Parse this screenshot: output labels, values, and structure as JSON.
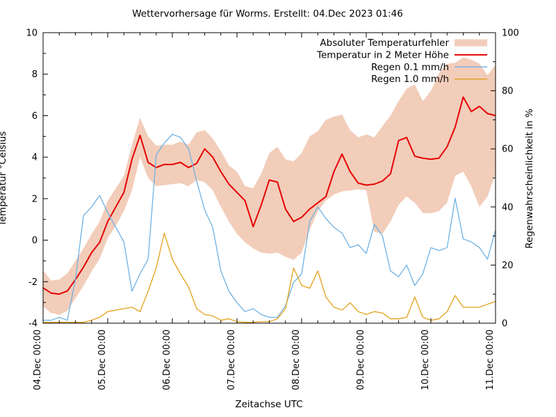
{
  "title": "Wettervorhersage für Worms. Erstellt: 04.Dec 2023 01:46",
  "xlabel": "Zeitachse UTC",
  "ylabel_left": "Temperatur °Celsius",
  "ylabel_right": "Regenwahrscheinlichkeit in %",
  "colors": {
    "background": "#ffffff",
    "axis": "#000000",
    "error_band": "#f2cdba",
    "temperature": "#e60000",
    "rain01": "#6eb1e3",
    "rain10": "#e3a018"
  },
  "legend": {
    "position": "top-right-inside",
    "entries": [
      {
        "label": "Absoluter Temperaturfehler",
        "swatch": "band",
        "color": "#f2cdba"
      },
      {
        "label": "Temperatur in 2 Meter Höhe",
        "swatch": "line",
        "color": "#e60000"
      },
      {
        "label": "Regen 0.1 mm/h",
        "swatch": "line",
        "color": "#6eb1e3"
      },
      {
        "label": "Regen 1.0 mm/h",
        "swatch": "line",
        "color": "#e3a018"
      }
    ]
  },
  "axes": {
    "x": {
      "tick_labels": [
        "04.Dec 00:00",
        "05.Dec 00:00",
        "06.Dec 00:00",
        "07.Dec 00:00",
        "08.Dec 00:00",
        "09.Dec 00:00",
        "10.Dec 00:00",
        "11.Dec 00:00"
      ],
      "major_tick_hours": [
        0,
        24,
        48,
        72,
        96,
        120,
        144,
        168
      ],
      "minor_tick_step_hours": 6,
      "range_hours": [
        0,
        168
      ]
    },
    "y_left": {
      "range": [
        -4,
        10
      ],
      "major_ticks": [
        -4,
        -2,
        0,
        2,
        4,
        6,
        8,
        10
      ],
      "minor_step": 1
    },
    "y_right": {
      "range": [
        0,
        100
      ],
      "major_ticks": [
        0,
        20,
        40,
        60,
        80,
        100
      ],
      "minor_step": 10
    }
  },
  "chart_data": {
    "type": "line",
    "title": "Wettervorhersage für Worms. Erstellt: 04.Dec 2023 01:46",
    "xlabel": "Zeitachse UTC",
    "ylabel": "Temperatur °Celsius",
    "y2label": "Regenwahrscheinlichkeit in %",
    "ylim_left": [
      -4,
      10
    ],
    "ylim_right": [
      0,
      100
    ],
    "grid": false,
    "legend_position": "top-right",
    "x_hours": [
      0,
      3,
      6,
      9,
      12,
      15,
      18,
      21,
      24,
      27,
      30,
      33,
      36,
      39,
      42,
      45,
      48,
      51,
      54,
      57,
      60,
      63,
      66,
      69,
      72,
      75,
      78,
      81,
      84,
      87,
      90,
      93,
      96,
      99,
      102,
      105,
      108,
      111,
      114,
      117,
      120,
      123,
      126,
      129,
      132,
      135,
      138,
      141,
      144,
      147,
      150,
      153,
      156,
      159,
      162,
      165,
      168
    ],
    "series": [
      {
        "name": "Absoluter Temperaturfehler",
        "type": "band",
        "axis": "left",
        "color": "#f2cdba",
        "upper": [
          -1.45,
          -1.95,
          -1.9,
          -1.6,
          -1.0,
          -0.4,
          0.3,
          0.9,
          1.9,
          2.5,
          3.1,
          4.6,
          5.9,
          5.0,
          4.55,
          4.6,
          4.6,
          4.75,
          4.6,
          5.2,
          5.3,
          4.9,
          4.3,
          3.6,
          3.3,
          2.6,
          2.5,
          3.2,
          4.2,
          4.5,
          3.9,
          3.8,
          4.2,
          5.0,
          5.25,
          5.8,
          5.95,
          6.05,
          5.3,
          4.95,
          5.1,
          4.95,
          5.5,
          6.0,
          6.7,
          7.3,
          7.5,
          6.7,
          7.2,
          8.05,
          8.5,
          8.55,
          8.8,
          8.7,
          8.5,
          7.95,
          8.45
        ],
        "lower": [
          -3.2,
          -3.5,
          -3.6,
          -3.4,
          -2.8,
          -2.2,
          -1.5,
          -0.9,
          0.1,
          0.7,
          1.4,
          2.4,
          4.0,
          3.0,
          2.6,
          2.65,
          2.7,
          2.75,
          2.6,
          2.9,
          2.8,
          2.4,
          1.6,
          0.9,
          0.3,
          -0.1,
          -0.4,
          -0.6,
          -0.65,
          -0.6,
          -0.8,
          -0.95,
          -0.6,
          0.5,
          1.4,
          1.9,
          2.2,
          2.35,
          2.4,
          2.45,
          2.4,
          0.4,
          0.3,
          0.9,
          1.7,
          2.1,
          1.8,
          1.3,
          1.3,
          1.4,
          1.8,
          3.1,
          3.3,
          2.6,
          1.6,
          2.1,
          3.2
        ]
      },
      {
        "name": "Temperatur in 2 Meter Höhe",
        "type": "line",
        "axis": "left",
        "color": "#e60000",
        "width": 2,
        "values": [
          -2.3,
          -2.55,
          -2.6,
          -2.45,
          -1.9,
          -1.3,
          -0.6,
          -0.1,
          0.9,
          1.6,
          2.3,
          3.9,
          5.05,
          3.75,
          3.5,
          3.65,
          3.65,
          3.75,
          3.5,
          3.7,
          4.4,
          4.0,
          3.3,
          2.7,
          2.3,
          1.9,
          0.65,
          1.7,
          2.9,
          2.8,
          1.5,
          0.9,
          1.1,
          1.5,
          1.8,
          2.1,
          3.3,
          4.15,
          3.3,
          2.75,
          2.65,
          2.7,
          2.85,
          3.2,
          4.8,
          4.95,
          4.05,
          3.95,
          3.9,
          3.95,
          4.5,
          5.45,
          6.9,
          6.2,
          6.45,
          6.1,
          6.0
        ]
      },
      {
        "name": "Regen 0.1 mm/h",
        "type": "line",
        "axis": "right",
        "color": "#6eb1e3",
        "width": 1.3,
        "values": [
          1,
          1,
          2,
          1,
          15,
          37,
          40,
          44,
          38,
          33,
          28,
          11,
          17,
          22,
          58,
          62,
          65,
          64,
          60,
          49,
          39,
          33,
          18,
          11,
          7,
          4,
          5,
          3,
          2,
          2,
          6,
          14,
          17,
          35,
          40,
          36,
          33,
          31,
          26,
          27,
          24,
          34,
          30,
          18,
          16,
          20,
          13,
          17,
          26,
          25,
          26,
          43,
          29,
          28,
          26,
          22,
          32
        ]
      },
      {
        "name": "Regen 1.0 mm/h",
        "type": "line",
        "axis": "right",
        "color": "#e3a018",
        "width": 1.3,
        "values": [
          0,
          0,
          0,
          0,
          0,
          0,
          1,
          2,
          4,
          4.5,
          5,
          5.5,
          4,
          11,
          19,
          31,
          22,
          17,
          12.5,
          5,
          3,
          2.5,
          1,
          1.5,
          0.5,
          0,
          0,
          0.5,
          0.5,
          1.5,
          5,
          19,
          13,
          12,
          18,
          9,
          5.5,
          4.5,
          7,
          4,
          3,
          4,
          3.5,
          1.5,
          1.5,
          2,
          9,
          2,
          1,
          1.5,
          4,
          9.5,
          5.5,
          5.5,
          5.5,
          6.5,
          7.5
        ]
      }
    ]
  }
}
